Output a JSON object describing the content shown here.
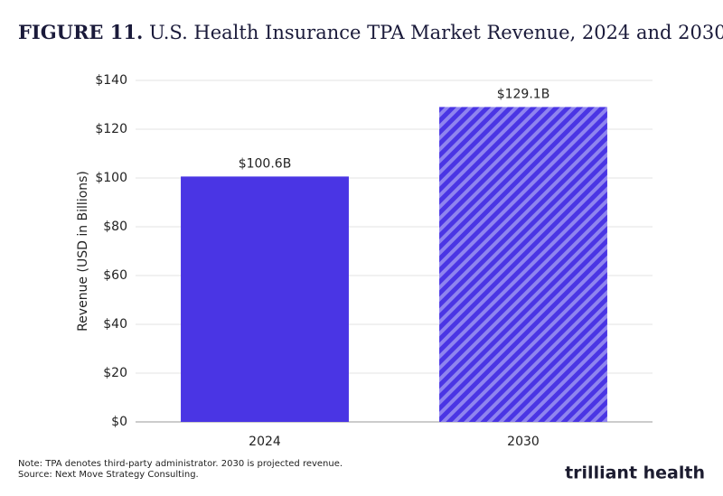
{
  "chart_data": {
    "type": "bar",
    "figure_label": "FIGURE 11.",
    "title": "U.S. Health Insurance TPA Market Revenue, 2024 and 2030",
    "y_label": "Revenue (USD in Billions)",
    "categories": [
      "2024",
      "2030"
    ],
    "values": [
      100.6,
      129.1
    ],
    "value_labels": [
      "$100.6B",
      "$129.1B"
    ],
    "hatched": [
      false,
      true
    ],
    "color": "#4a35e4",
    "ylim": [
      0,
      140
    ],
    "yticks": [
      {
        "value": 0,
        "label": "$0"
      },
      {
        "value": 20,
        "label": "$20"
      },
      {
        "value": 40,
        "label": "$40"
      },
      {
        "value": 60,
        "label": "$60"
      },
      {
        "value": 80,
        "label": "$80"
      },
      {
        "value": 100,
        "label": "$100"
      },
      {
        "value": 120,
        "label": "$120"
      },
      {
        "value": 140,
        "label": "$140"
      }
    ],
    "grid": true,
    "note": "Note: TPA denotes third-party administrator. 2030 is projected revenue.",
    "source": "Source: Next Move Strategy Consulting.",
    "logo": "trilliant health"
  }
}
